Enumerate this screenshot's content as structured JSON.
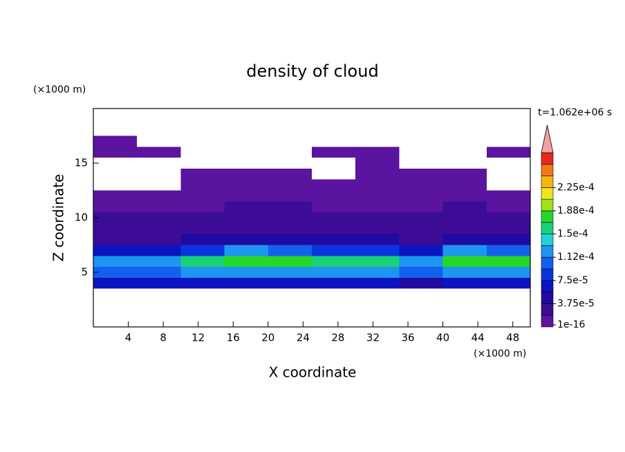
{
  "chart_data": {
    "type": "contour",
    "title": "density of cloud",
    "x_label": "X coordinate",
    "y_label": "Z coordinate",
    "x_unit": "(×1000 m)",
    "y_unit": "(×1000 m)",
    "time_label": "t=1.062e+06 s",
    "xlim": [
      0,
      50
    ],
    "ylim": [
      0,
      20
    ],
    "xticks": [
      4,
      8,
      12,
      16,
      20,
      24,
      28,
      32,
      36,
      40,
      44,
      48
    ],
    "yticks": [
      5,
      10,
      15
    ],
    "x": [
      2.5,
      7.5,
      12.5,
      17.5,
      22.5,
      27.5,
      32.5,
      37.5,
      42.5,
      47.5
    ],
    "y": [
      4,
      5,
      6,
      7,
      8,
      9,
      10,
      11,
      12,
      13,
      14,
      15,
      16,
      17
    ],
    "values": [
      [
        6e-05,
        6e-05,
        6e-05,
        6e-05,
        6e-05,
        6e-05,
        6e-05,
        5e-05,
        6e-05,
        6e-05
      ],
      [
        0.00011,
        0.00011,
        0.00012,
        0.00013,
        0.00013,
        0.00013,
        0.000125,
        0.00011,
        0.00013,
        0.00012
      ],
      [
        0.00013,
        0.00013,
        0.00016,
        0.00018,
        0.00017,
        0.000165,
        0.00016,
        0.00013,
        0.00018,
        0.00017
      ],
      [
        6e-05,
        6e-05,
        8e-05,
        0.00012,
        0.0001,
        9e-05,
        9e-05,
        6e-05,
        0.00012,
        0.0001
      ],
      [
        3.5e-05,
        3.5e-05,
        4e-05,
        5e-05,
        4.5e-05,
        4e-05,
        4e-05,
        3.5e-05,
        5e-05,
        4.5e-05
      ],
      [
        2.5e-05,
        2.5e-05,
        3e-05,
        3.5e-05,
        3e-05,
        3e-05,
        3e-05,
        2.5e-05,
        3.5e-05,
        3e-05
      ],
      [
        2e-05,
        2e-05,
        2.5e-05,
        2.5e-05,
        2.5e-05,
        2.5e-05,
        2.5e-05,
        2e-05,
        2.5e-05,
        2.5e-05
      ],
      [
        1.5e-05,
        1.5e-05,
        1.8e-05,
        2e-05,
        2e-05,
        1.8e-05,
        1.8e-05,
        1.5e-05,
        2e-05,
        1.8e-05
      ],
      [
        8e-06,
        8e-06,
        1e-05,
        1.2e-05,
        1.2e-05,
        1e-05,
        1e-05,
        8e-06,
        1.2e-05,
        1e-05
      ],
      [
        null,
        null,
        5e-06,
        6e-06,
        6e-06,
        6e-06,
        6e-06,
        5e-06,
        5e-06,
        null
      ],
      [
        null,
        null,
        3e-06,
        3e-06,
        4e-06,
        null,
        4e-06,
        4e-06,
        3e-06,
        null
      ],
      [
        null,
        null,
        null,
        null,
        null,
        null,
        3e-06,
        null,
        null,
        null
      ],
      [
        5e-06,
        5e-06,
        null,
        null,
        null,
        5e-06,
        5e-06,
        null,
        null,
        5e-06
      ],
      [
        5e-06,
        null,
        null,
        null,
        null,
        null,
        null,
        null,
        null,
        null
      ]
    ],
    "levels": [
      {
        "value": 1e-16,
        "label": "1e-16"
      },
      {
        "value": 3.75e-05,
        "label": "3.75e-5"
      },
      {
        "value": 7.5e-05,
        "label": "7.5e-5"
      },
      {
        "value": 0.000112,
        "label": "1.12e-4"
      },
      {
        "value": 0.00015,
        "label": "1.5e-4"
      },
      {
        "value": 0.000188,
        "label": "1.88e-4"
      },
      {
        "value": 0.000225,
        "label": "2.25e-4"
      }
    ],
    "colors": [
      "#5a14a0",
      "#3c0c96",
      "#200aa0",
      "#0a14c0",
      "#0c34dc",
      "#1460ec",
      "#1c96f0",
      "#1ed2d8",
      "#18d278",
      "#24d828",
      "#a0e01c",
      "#f0e41e",
      "#f8b414",
      "#f47814",
      "#e8281e"
    ],
    "extend_color": "#f4a0a0"
  }
}
